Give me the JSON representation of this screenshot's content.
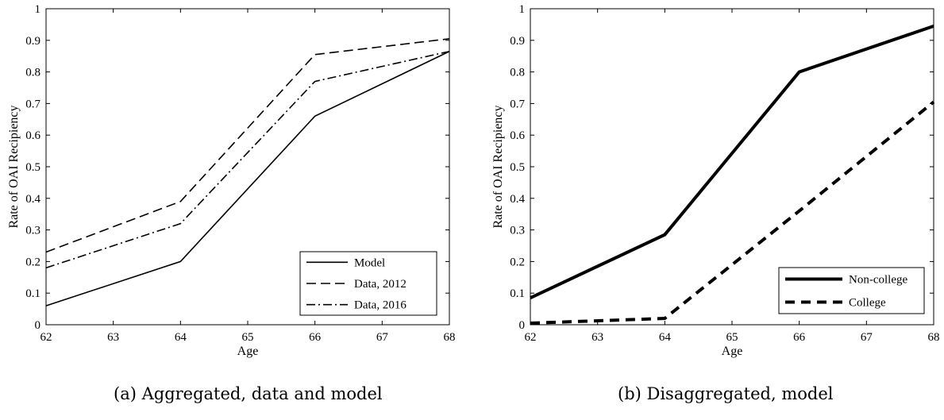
{
  "chart_data": [
    {
      "type": "line",
      "caption": "(a) Aggregated, data and model",
      "xlabel": "Age",
      "ylabel": "Rate of OAI Recipiency",
      "xlim": [
        62,
        68
      ],
      "ylim": [
        0,
        1
      ],
      "xticks": [
        "62",
        "63",
        "64",
        "65",
        "66",
        "67",
        "68"
      ],
      "yticks": [
        "0",
        "0.1",
        "0.2",
        "0.3",
        "0.4",
        "0.5",
        "0.6",
        "0.7",
        "0.8",
        "0.9",
        "1"
      ],
      "grid": false,
      "legend_position": "bottom-right",
      "series": [
        {
          "name": "Model",
          "style": "solid",
          "x": [
            62,
            64,
            66,
            68
          ],
          "y": [
            0.06,
            0.2,
            0.66,
            0.865
          ]
        },
        {
          "name": "Data, 2012",
          "style": "dashed",
          "x": [
            62,
            64,
            66,
            68
          ],
          "y": [
            0.23,
            0.39,
            0.855,
            0.905
          ]
        },
        {
          "name": "Data, 2016",
          "style": "dashdot",
          "x": [
            62,
            64,
            66,
            68
          ],
          "y": [
            0.18,
            0.32,
            0.77,
            0.865
          ]
        }
      ]
    },
    {
      "type": "line",
      "caption": "(b) Disaggregated, model",
      "xlabel": "Age",
      "ylabel": "Rate of OAI Recipiency",
      "xlim": [
        62,
        68
      ],
      "ylim": [
        0,
        1
      ],
      "xticks": [
        "62",
        "63",
        "64",
        "65",
        "66",
        "67",
        "68"
      ],
      "yticks": [
        "0",
        "0.1",
        "0.2",
        "0.3",
        "0.4",
        "0.5",
        "0.6",
        "0.7",
        "0.8",
        "0.9",
        "1"
      ],
      "grid": false,
      "legend_position": "bottom-right",
      "series": [
        {
          "name": "Non-college",
          "style": "solid-thick",
          "x": [
            62,
            64,
            66,
            68
          ],
          "y": [
            0.085,
            0.285,
            0.8,
            0.945
          ]
        },
        {
          "name": "College",
          "style": "dashed-thick",
          "x": [
            62,
            64,
            66,
            68
          ],
          "y": [
            0.005,
            0.02,
            0.36,
            0.705
          ]
        }
      ]
    }
  ]
}
